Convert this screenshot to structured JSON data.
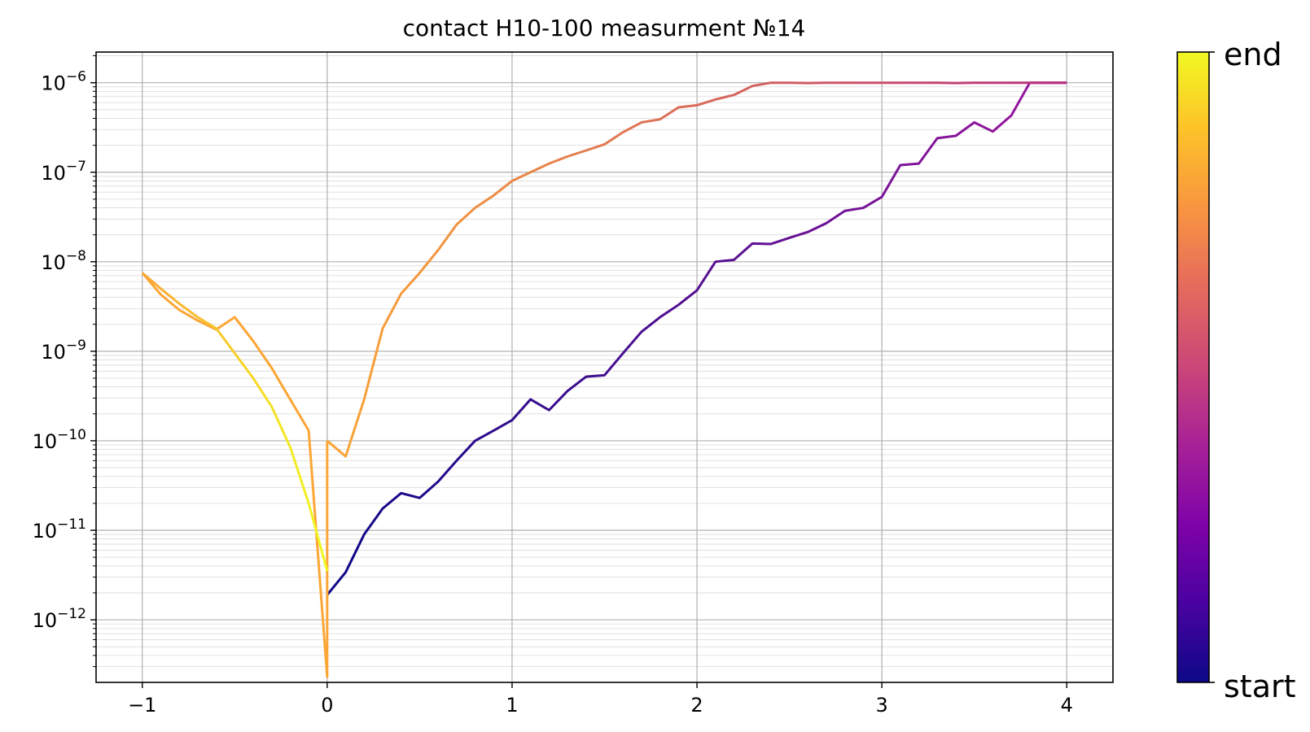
{
  "chart_data": {
    "type": "line",
    "title": "contact H10-100 measurment №14",
    "xlabel": "",
    "ylabel": "",
    "y_scale": "log",
    "xlim": [
      -1.25,
      4.25
    ],
    "ylim": [
      2e-13,
      2.2e-06
    ],
    "x_ticks": [
      {
        "value": -1,
        "label": "−1"
      },
      {
        "value": 0,
        "label": "0"
      },
      {
        "value": 1,
        "label": "1"
      },
      {
        "value": 2,
        "label": "2"
      },
      {
        "value": 3,
        "label": "3"
      },
      {
        "value": 4,
        "label": "4"
      }
    ],
    "y_ticks": [
      {
        "value": 1e-12,
        "base": "10",
        "exp": "−12"
      },
      {
        "value": 1e-11,
        "base": "10",
        "exp": "−11"
      },
      {
        "value": 1e-10,
        "base": "10",
        "exp": "−10"
      },
      {
        "value": 1e-09,
        "base": "10",
        "exp": "−9"
      },
      {
        "value": 1e-08,
        "base": "10",
        "exp": "−8"
      },
      {
        "value": 1e-07,
        "base": "10",
        "exp": "−7"
      },
      {
        "value": 1e-06,
        "base": "10",
        "exp": "−6"
      }
    ],
    "grid": true,
    "colormap": "plasma",
    "colorbar": {
      "top_label": "end",
      "bottom_label": "start",
      "placement": "right"
    },
    "series": [
      {
        "segment": "sweep 0 to 4",
        "color_start": "#0d0887",
        "color_end": "#9c179e",
        "x": [
          0,
          0.1,
          0.2,
          0.3,
          0.4,
          0.5,
          0.6,
          0.7,
          0.8,
          0.9,
          1.0,
          1.1,
          1.2,
          1.3,
          1.4,
          1.5,
          1.6,
          1.7,
          1.8,
          1.9,
          2.0,
          2.1,
          2.2,
          2.3,
          2.4,
          2.5,
          2.6,
          2.7,
          2.8,
          2.9,
          3.0,
          3.1,
          3.2,
          3.3,
          3.4,
          3.5,
          3.6,
          3.7,
          3.8,
          3.9,
          4.0
        ],
        "y": [
          1.9e-12,
          3.4e-12,
          9e-12,
          1.75e-11,
          2.6e-11,
          2.3e-11,
          3.5e-11,
          6e-11,
          1e-10,
          1.3e-10,
          1.7e-10,
          2.9e-10,
          2.2e-10,
          3.6e-10,
          5.2e-10,
          5.4e-10,
          9.5e-10,
          1.65e-09,
          2.4e-09,
          3.3e-09,
          4.8e-09,
          1e-08,
          1.05e-08,
          1.6e-08,
          1.58e-08,
          1.85e-08,
          2.15e-08,
          2.7e-08,
          3.7e-08,
          4e-08,
          5.3e-08,
          1.2e-07,
          1.25e-07,
          2.4e-07,
          2.55e-07,
          3.6e-07,
          2.85e-07,
          4.3e-07,
          1e-06,
          1e-06,
          1e-06
        ]
      },
      {
        "segment": "sweep 4 to 0",
        "color_start": "#b6307f",
        "color_end": "#fca636",
        "x": [
          4.0,
          3.9,
          3.8,
          3.7,
          3.6,
          3.5,
          3.4,
          3.3,
          3.2,
          3.1,
          3.0,
          2.9,
          2.8,
          2.7,
          2.6,
          2.5,
          2.4,
          2.3,
          2.2,
          2.1,
          2.0,
          1.9,
          1.8,
          1.7,
          1.6,
          1.5,
          1.4,
          1.3,
          1.2,
          1.1,
          1.0,
          0.9,
          0.8,
          0.7,
          0.6,
          0.5,
          0.4,
          0.3,
          0.2,
          0.1,
          0.0
        ],
        "y": [
          1e-06,
          1e-06,
          1e-06,
          1e-06,
          1e-06,
          1e-06,
          9.9e-07,
          1e-06,
          1e-06,
          1e-06,
          1e-06,
          1e-06,
          1e-06,
          1e-06,
          9.9e-07,
          1e-06,
          1e-06,
          9.2e-07,
          7.3e-07,
          6.5e-07,
          5.6e-07,
          5.3e-07,
          3.9e-07,
          3.6e-07,
          2.8e-07,
          2.05e-07,
          1.75e-07,
          1.5e-07,
          1.25e-07,
          1e-07,
          8e-08,
          5.5e-08,
          4e-08,
          2.6e-08,
          1.35e-08,
          7.5e-09,
          4.4e-09,
          1.8e-09,
          2.9e-10,
          6.7e-11,
          1e-10
        ]
      },
      {
        "segment": "sweep 0 to -1",
        "color_start": "#fca636",
        "color_end": "#fca636",
        "x": [
          0.0,
          0.0,
          -0.1,
          -0.2,
          -0.3,
          -0.4,
          -0.5,
          -0.6,
          -0.7,
          -0.8,
          -0.9,
          -1.0
        ],
        "y": [
          1e-10,
          2.3e-13,
          1.3e-10,
          2.9e-10,
          6.5e-10,
          1.3e-09,
          2.4e-09,
          1.75e-09,
          2.2e-09,
          2.9e-09,
          4.3e-09,
          7.5e-09
        ]
      },
      {
        "segment": "sweep -1 to 0",
        "color_start": "#fca636",
        "color_end": "#f0f921",
        "x": [
          -1.0,
          -0.9,
          -0.8,
          -0.7,
          -0.6,
          -0.5,
          -0.4,
          -0.3,
          -0.2,
          -0.1,
          0.0
        ],
        "y": [
          7.5e-09,
          5e-09,
          3.4e-09,
          2.4e-09,
          1.8e-09,
          9.5e-10,
          5e-10,
          2.4e-10,
          8.5e-11,
          2e-11,
          3.5e-12
        ]
      }
    ]
  }
}
